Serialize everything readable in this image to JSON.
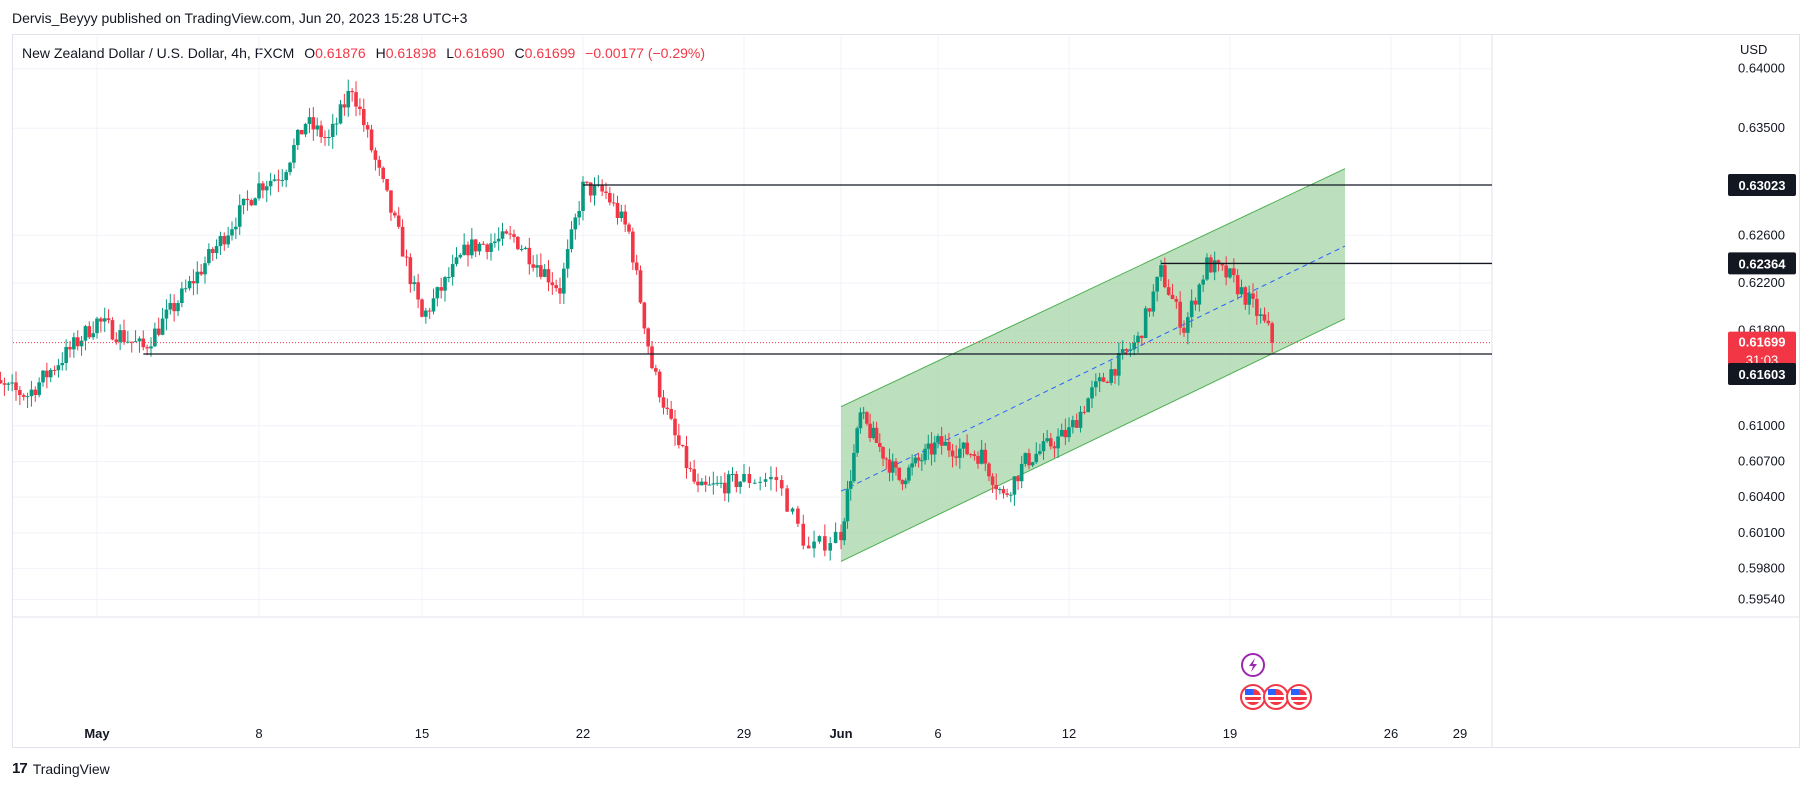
{
  "header": {
    "publish_line": "Dervis_Beyyy published on TradingView.com, Jun 20, 2023 15:28 UTC+3"
  },
  "legend": {
    "symbol": "New Zealand Dollar / U.S. Dollar, 4h, FXCM",
    "o_label": "O",
    "o_value": "0.61876",
    "h_label": "H",
    "h_value": "0.61898",
    "l_label": "L",
    "l_value": "0.61690",
    "c_label": "C",
    "c_value": "0.61699",
    "change": "−0.00177 (−0.29%)"
  },
  "footer": {
    "brand": "TradingView",
    "logo": "17"
  },
  "chart_data": {
    "type": "candlestick",
    "currency_label": "USD",
    "y_ticks": [
      "0.64000",
      "0.63500",
      "0.62600",
      "0.62200",
      "0.61800",
      "0.61000",
      "0.60700",
      "0.60400",
      "0.60100",
      "0.59800",
      "0.59540"
    ],
    "x_ticks": [
      {
        "label": "May",
        "bold": true,
        "date": "2023-05-01"
      },
      {
        "label": "8",
        "bold": false,
        "date": "2023-05-08"
      },
      {
        "label": "15",
        "bold": false,
        "date": "2023-05-15"
      },
      {
        "label": "22",
        "bold": false,
        "date": "2023-05-22"
      },
      {
        "label": "29",
        "bold": false,
        "date": "2023-05-29"
      },
      {
        "label": "Jun",
        "bold": true,
        "date": "2023-06-01"
      },
      {
        "label": "6",
        "bold": false,
        "date": "2023-06-06"
      },
      {
        "label": "12",
        "bold": false,
        "date": "2023-06-12"
      },
      {
        "label": "19",
        "bold": false,
        "date": "2023-06-19"
      },
      {
        "label": "26",
        "bold": false,
        "date": "2023-06-26"
      },
      {
        "label": "29",
        "bold": false,
        "date": "2023-06-29"
      }
    ],
    "price_labels": [
      {
        "text": "0.63023",
        "price": 0.63023,
        "kind": "level"
      },
      {
        "text": "0.62364",
        "price": 0.62364,
        "kind": "level"
      },
      {
        "text": "0.61699",
        "price": 0.61699,
        "kind": "last",
        "countdown": "31:03"
      },
      {
        "text": "0.61603",
        "price": 0.61603,
        "kind": "level"
      }
    ],
    "horizontal_levels": [
      {
        "price": 0.63023,
        "from": "2023-05-22"
      },
      {
        "price": 0.62364,
        "from": "2023-06-16"
      },
      {
        "price": 0.61603,
        "from": "2023-05-03"
      }
    ],
    "channel": {
      "start_date": "2023-06-01",
      "end_date": "2023-06-24",
      "upper_start": 0.6116,
      "upper_end": 0.6316,
      "lower_start": 0.5986,
      "lower_end": 0.619,
      "mid_start": 0.6045,
      "mid_end": 0.6251
    },
    "colors": {
      "up": "#089981",
      "down": "#f23645",
      "channel_fill": "#a5d6a7",
      "channel_line": "#4caf50",
      "mid_line": "#2962ff",
      "level_line": "#131722",
      "last_price": "#f23645"
    },
    "events": [
      {
        "icon": "lightning-icon",
        "date": "2023-06-20",
        "row": 0
      },
      {
        "icon": "us-flag-icon",
        "date": "2023-06-20",
        "row": 1
      },
      {
        "icon": "us-flag-icon",
        "date": "2023-06-21",
        "row": 1
      },
      {
        "icon": "us-flag-icon",
        "date": "2023-06-22",
        "row": 1
      }
    ],
    "key_points": [
      {
        "date": "2023-04-26",
        "price": 0.6137
      },
      {
        "date": "2023-04-28",
        "price": 0.6126
      },
      {
        "date": "2023-05-01",
        "price": 0.6188
      },
      {
        "date": "2023-05-03",
        "price": 0.6165
      },
      {
        "date": "2023-05-05",
        "price": 0.6218
      },
      {
        "date": "2023-05-08",
        "price": 0.6302
      },
      {
        "date": "2023-05-09",
        "price": 0.6312
      },
      {
        "date": "2023-05-10",
        "price": 0.6355
      },
      {
        "date": "2023-05-11",
        "price": 0.634
      },
      {
        "date": "2023-05-12",
        "price": 0.6385
      },
      {
        "date": "2023-05-13",
        "price": 0.6322
      },
      {
        "date": "2023-05-14",
        "price": 0.626
      },
      {
        "date": "2023-05-15",
        "price": 0.619
      },
      {
        "date": "2023-05-17",
        "price": 0.625
      },
      {
        "date": "2023-05-19",
        "price": 0.6258
      },
      {
        "date": "2023-05-21",
        "price": 0.6215
      },
      {
        "date": "2023-05-22",
        "price": 0.63
      },
      {
        "date": "2023-05-23",
        "price": 0.6295
      },
      {
        "date": "2023-05-24",
        "price": 0.6262
      },
      {
        "date": "2023-05-25",
        "price": 0.615
      },
      {
        "date": "2023-05-26",
        "price": 0.609
      },
      {
        "date": "2023-05-27",
        "price": 0.6045
      },
      {
        "date": "2023-05-29",
        "price": 0.6055
      },
      {
        "date": "2023-05-30",
        "price": 0.6055
      },
      {
        "date": "2023-05-31",
        "price": 0.5995
      },
      {
        "date": "2023-06-01",
        "price": 0.601
      },
      {
        "date": "2023-06-02",
        "price": 0.6108
      },
      {
        "date": "2023-06-04",
        "price": 0.6055
      },
      {
        "date": "2023-06-06",
        "price": 0.6085
      },
      {
        "date": "2023-06-08",
        "price": 0.6075
      },
      {
        "date": "2023-06-09",
        "price": 0.604
      },
      {
        "date": "2023-06-10",
        "price": 0.607
      },
      {
        "date": "2023-06-12",
        "price": 0.6095
      },
      {
        "date": "2023-06-13",
        "price": 0.6128
      },
      {
        "date": "2023-06-14",
        "price": 0.615
      },
      {
        "date": "2023-06-15",
        "price": 0.6172
      },
      {
        "date": "2023-06-16",
        "price": 0.6229
      },
      {
        "date": "2023-06-17",
        "price": 0.6182
      },
      {
        "date": "2023-06-18",
        "price": 0.6236
      },
      {
        "date": "2023-06-19",
        "price": 0.6225
      },
      {
        "date": "2023-06-20",
        "price": 0.62
      },
      {
        "date": "2023-06-21",
        "price": 0.617
      }
    ]
  }
}
